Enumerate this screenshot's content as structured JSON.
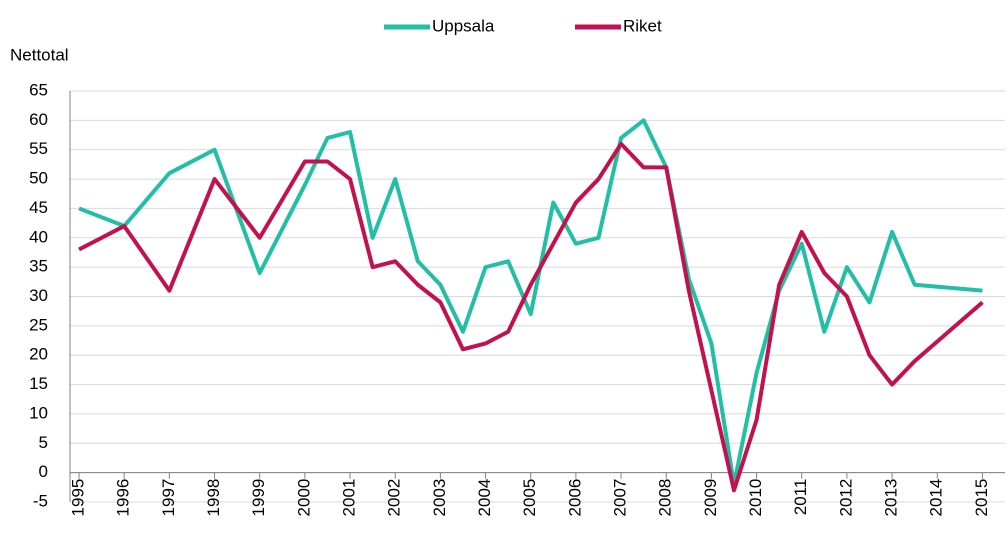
{
  "chart_data": {
    "type": "line",
    "y_label": "Nettotal",
    "x": [
      1995,
      1996,
      1997,
      1998,
      1999,
      2000,
      2000.5,
      2001,
      2001.5,
      2002,
      2002.5,
      2003,
      2003.5,
      2004,
      2004.5,
      2005,
      2005.5,
      2006,
      2006.5,
      2007,
      2007.5,
      2008,
      2008.5,
      2009,
      2009.5,
      2010,
      2010.5,
      2011,
      2011.5,
      2012,
      2012.5,
      2013,
      2013.5,
      2015
    ],
    "series": [
      {
        "name": "Uppsala",
        "color": "#21bfa6",
        "values": [
          45,
          42,
          51,
          55,
          34,
          49,
          57,
          58,
          40,
          50,
          36,
          32,
          24,
          35,
          36,
          27,
          46,
          39,
          40,
          57,
          60,
          52,
          33,
          22,
          -2,
          17,
          31,
          39,
          24,
          35,
          29,
          41,
          32,
          31
        ]
      },
      {
        "name": "Riket",
        "color": "#c4104c",
        "values": [
          38,
          42,
          31,
          50,
          40,
          53,
          53,
          50,
          35,
          36,
          32,
          29,
          21,
          22,
          24,
          32,
          39,
          46,
          50,
          56,
          52,
          52,
          31,
          14,
          -3,
          9,
          32,
          41,
          34,
          30,
          20,
          15,
          19,
          29
        ]
      }
    ],
    "xlim": [
      1994.8,
      2015.5
    ],
    "xticks": [
      1995,
      1996,
      1997,
      1998,
      1999,
      2000,
      2001,
      2002,
      2003,
      2004,
      2005,
      2006,
      2007,
      2008,
      2009,
      2010,
      2011,
      2012,
      2013,
      2014,
      2015
    ],
    "ylim": [
      -5,
      65
    ],
    "yticks": [
      -5,
      0,
      5,
      10,
      15,
      20,
      25,
      30,
      35,
      40,
      45,
      50,
      55,
      60,
      65
    ],
    "grid": true,
    "legend": "top"
  }
}
